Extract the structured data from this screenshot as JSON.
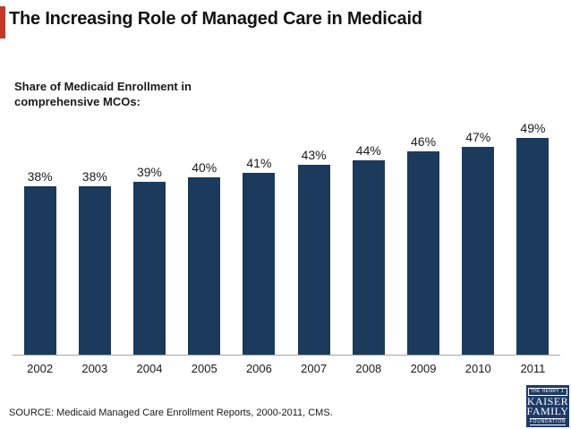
{
  "slide": {
    "title": "The Increasing Role of Managed Care in Medicaid",
    "subtitle_line1": "Share of Medicaid Enrollment in",
    "subtitle_line2": "comprehensive MCOs:",
    "source": "SOURCE: Medicaid Managed Care Enrollment Reports, 2000-2011, CMS.",
    "accent_color": "#C0392B"
  },
  "chart_data": {
    "type": "bar",
    "title": "Share of Medicaid Enrollment in comprehensive MCOs",
    "categories": [
      "2002",
      "2003",
      "2004",
      "2005",
      "2006",
      "2007",
      "2008",
      "2009",
      "2010",
      "2011"
    ],
    "values": [
      38,
      38,
      39,
      40,
      41,
      43,
      44,
      46,
      47,
      49
    ],
    "value_labels": [
      "38%",
      "38%",
      "39%",
      "40%",
      "41%",
      "43%",
      "44%",
      "46%",
      "47%",
      "49%"
    ],
    "xlabel": "",
    "ylabel": "",
    "ylim": [
      0,
      50
    ],
    "grid": false,
    "legend": "none",
    "bar_color": "#1B3A5C",
    "axis_line_color": "#A6A6A6"
  },
  "logo": {
    "line1": "THE HENRY J.",
    "line2": "KAISER",
    "line3": "FAMILY",
    "line4": "FOUNDATION",
    "bg_color": "#1E3A68"
  }
}
